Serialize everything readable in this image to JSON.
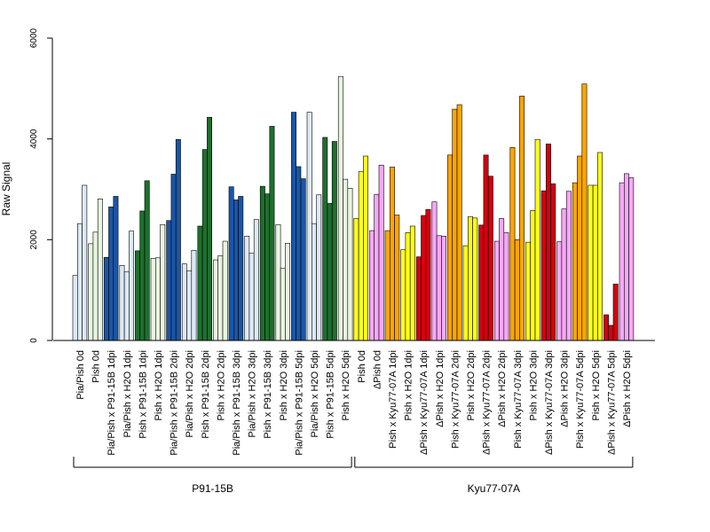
{
  "chart_data": {
    "type": "bar",
    "title": "",
    "xlabel": "",
    "ylabel": "Raw Signal",
    "ylim": [
      0,
      6000
    ],
    "y_ticks": [
      "0",
      "2000",
      "4000",
      "6000"
    ],
    "grid": false,
    "legend": "none",
    "categories": [
      "Pia/Pish 0d",
      "Pish 0d",
      "Pia/Pish x P91-15B 1dpi",
      "Pia/Pish x H2O 1dpi",
      "Pish x P91-15B 1dpi",
      "Pish x H2O 1dpi",
      "Pia/Pish x P91-15B 2dpi",
      "Pia/Pish x H2O 2dpi",
      "Pish x P91-15B 2dpi",
      "Pish x H2O 2dpi",
      "Pia/Pish x P91-15B 3dpi",
      "Pia/Pish x H2O 3dpi",
      "Pish x P91-15B 3dpi",
      "Pish x H2O 3dpi",
      "Pia/Pish x P91-15B 5dpi",
      "Pia/Pish x H2O 5dpi",
      "Pish x P91-15B 5dpi",
      "Pish x H2O 5dpi",
      "Pish 0d",
      "ΔPish 0d",
      "Pish x Kyu77-07A 1dpi",
      "Pish x H2O 1dpi",
      "ΔPish x Kyu77-07A 1dpi",
      "ΔPish x H2O 1dpi",
      "Pish x Kyu77-07A 2dpi",
      "Pish x H2O 2dpi",
      "ΔPish x Kyu77-07A 2dpi",
      "ΔPish x H2O 2dpi",
      "Pish x Kyu77-07A 3dpi",
      "Pish x H2O 3dpi",
      "ΔPish x Kyu77-07A 3dpi",
      "ΔPish x H2O 3dpi",
      "Pish x Kyu77-07A 5dpi",
      "Pish x H2O 5dpi",
      "ΔPish x Kyu77-07A 5dpi",
      "ΔPish x H2O 5dpi"
    ],
    "colors": [
      "#dce9f7",
      "#e8f5e0",
      "#1a56a8",
      "#1e6f2e",
      "#ffff1a",
      "#f7a8f7",
      "#ffa500",
      "#d40010"
    ],
    "group_color_index": [
      0,
      1,
      2,
      0,
      3,
      1,
      2,
      0,
      3,
      1,
      2,
      0,
      3,
      1,
      2,
      0,
      3,
      1,
      4,
      5,
      6,
      4,
      7,
      5,
      6,
      4,
      7,
      5,
      6,
      4,
      7,
      5,
      6,
      4,
      7,
      5
    ],
    "values": [
      [
        1290,
        2320,
        3080
      ],
      [
        1920,
        2150,
        2810
      ],
      [
        1650,
        2650,
        2860
      ],
      [
        1490,
        1360,
        2170
      ],
      [
        1780,
        2570,
        3170
      ],
      [
        1630,
        1640,
        2300
      ],
      [
        2380,
        3300,
        3990
      ],
      [
        1520,
        1380,
        1790
      ],
      [
        2270,
        3790,
        4430
      ],
      [
        1600,
        1680,
        1970
      ],
      [
        3050,
        2790,
        2860
      ],
      [
        2070,
        1730,
        2400
      ],
      [
        3060,
        2910,
        4250
      ],
      [
        2300,
        1430,
        1930
      ],
      [
        4530,
        3450,
        3210
      ],
      [
        4530,
        2320,
        2890
      ],
      [
        4030,
        2720,
        3950
      ],
      [
        5240,
        3200,
        3020
      ],
      [
        2420,
        3350,
        3660
      ],
      [
        2180,
        2900,
        3480
      ],
      [
        2180,
        3440,
        2490
      ],
      [
        1800,
        2140,
        2270
      ],
      [
        1660,
        2480,
        2600
      ],
      [
        2750,
        2080,
        2070
      ],
      [
        3680,
        4590,
        4680
      ],
      [
        1880,
        2460,
        2430
      ],
      [
        2290,
        3680,
        3260
      ],
      [
        1970,
        2420,
        2140
      ],
      [
        3830,
        2000,
        4850
      ],
      [
        1950,
        2580,
        3990
      ],
      [
        2970,
        3900,
        3110
      ],
      [
        1960,
        2610,
        2960
      ],
      [
        3130,
        3660,
        5090
      ],
      [
        3080,
        3080,
        3730
      ],
      [
        510,
        300,
        1120
      ],
      [
        3130,
        3310,
        3230
      ]
    ],
    "groups": [
      {
        "label": "P91-15B",
        "start": 0,
        "end": 17
      },
      {
        "label": "Kyu77-07A",
        "start": 18,
        "end": 35
      }
    ]
  }
}
